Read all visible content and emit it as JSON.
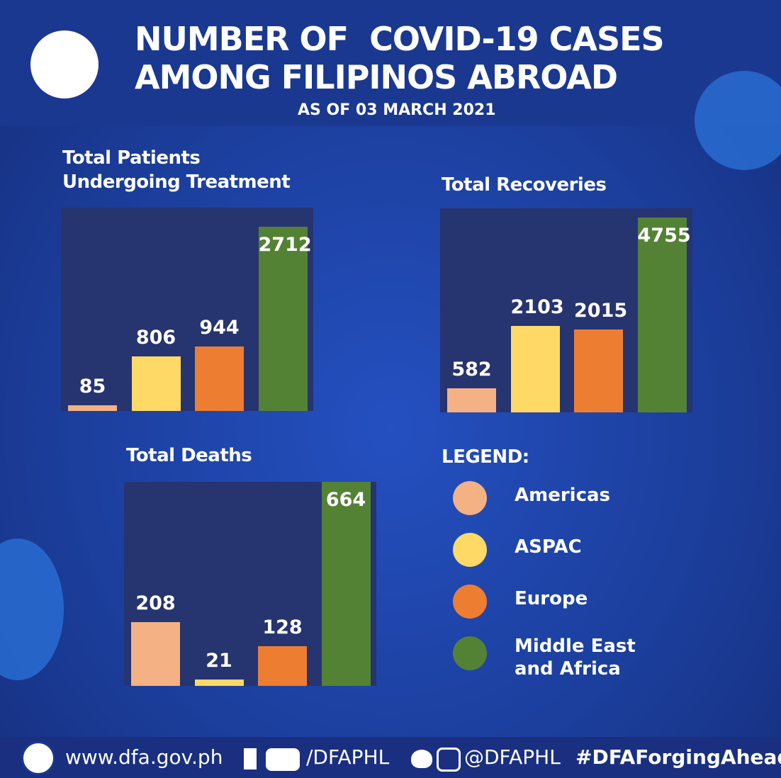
{
  "header": {
    "title": [
      "NUMBER OF  COVID-19 CASES",
      "AMONG FILIPINOS ABROAD"
    ],
    "subtitle": "AS OF 03 MARCH 2021"
  },
  "legend": {
    "title": "LEGEND:",
    "items": [
      {
        "name": "Americas",
        "color": "#f4b183"
      },
      {
        "name": "ASPAC",
        "color": "#ffd966"
      },
      {
        "name": "Europe",
        "color": "#ed7d31"
      },
      {
        "name": "Middle East and Africa",
        "color": "#548235"
      }
    ]
  },
  "chart_data": [
    {
      "type": "bar",
      "title": "Total Patients Undergoing Treatment",
      "values": [
        85,
        806,
        944,
        2712
      ]
    },
    {
      "type": "bar",
      "title": "Total Recoveries",
      "values": [
        582,
        2103,
        2015,
        4755
      ]
    },
    {
      "type": "bar",
      "title": "Total Deaths",
      "values": [
        208,
        21,
        128,
        664
      ]
    }
  ],
  "footer": {
    "website": "www.dfa.gov.ph",
    "facebook_youtube": "/DFAPHL",
    "twitter_instagram": "@DFAPHL",
    "hashtag": "#DFAForgingAhead"
  }
}
